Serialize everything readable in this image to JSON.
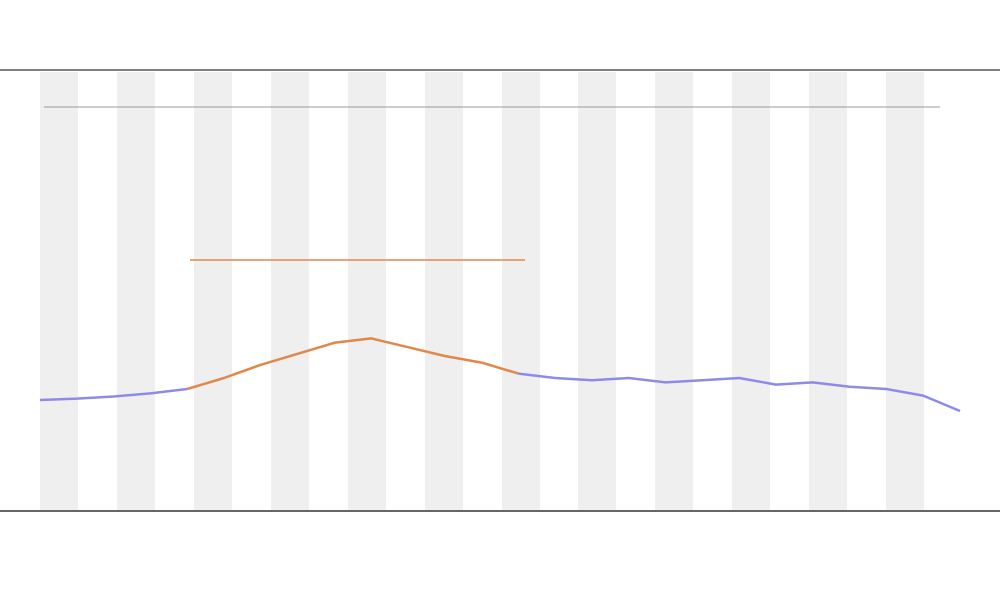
{
  "chart_data": {
    "type": "line",
    "x": [
      0,
      4,
      8,
      12,
      16,
      20,
      24,
      28,
      32,
      36,
      40,
      44,
      48,
      52,
      56,
      60,
      64,
      68,
      72,
      76,
      80,
      84,
      88,
      92,
      96,
      100
    ],
    "series": [
      {
        "color": "#8c8ce8",
        "values": [
          25,
          25.3,
          25.8,
          26.5,
          27.5,
          null,
          null,
          null,
          null,
          null,
          null,
          null,
          null,
          31,
          30,
          29.5,
          30,
          29,
          29.5,
          30,
          28.5,
          29,
          28,
          27.5,
          26,
          22.5
        ]
      },
      {
        "color": "#e0884a",
        "values": [
          null,
          null,
          null,
          null,
          27.5,
          30,
          33,
          35.5,
          38,
          39,
          37,
          35,
          33.5,
          31,
          null,
          null,
          null,
          null,
          null,
          null,
          null,
          null,
          null,
          null,
          null,
          null
        ]
      }
    ],
    "xlim": [
      0,
      100
    ],
    "ylim": [
      0,
      100
    ]
  }
}
